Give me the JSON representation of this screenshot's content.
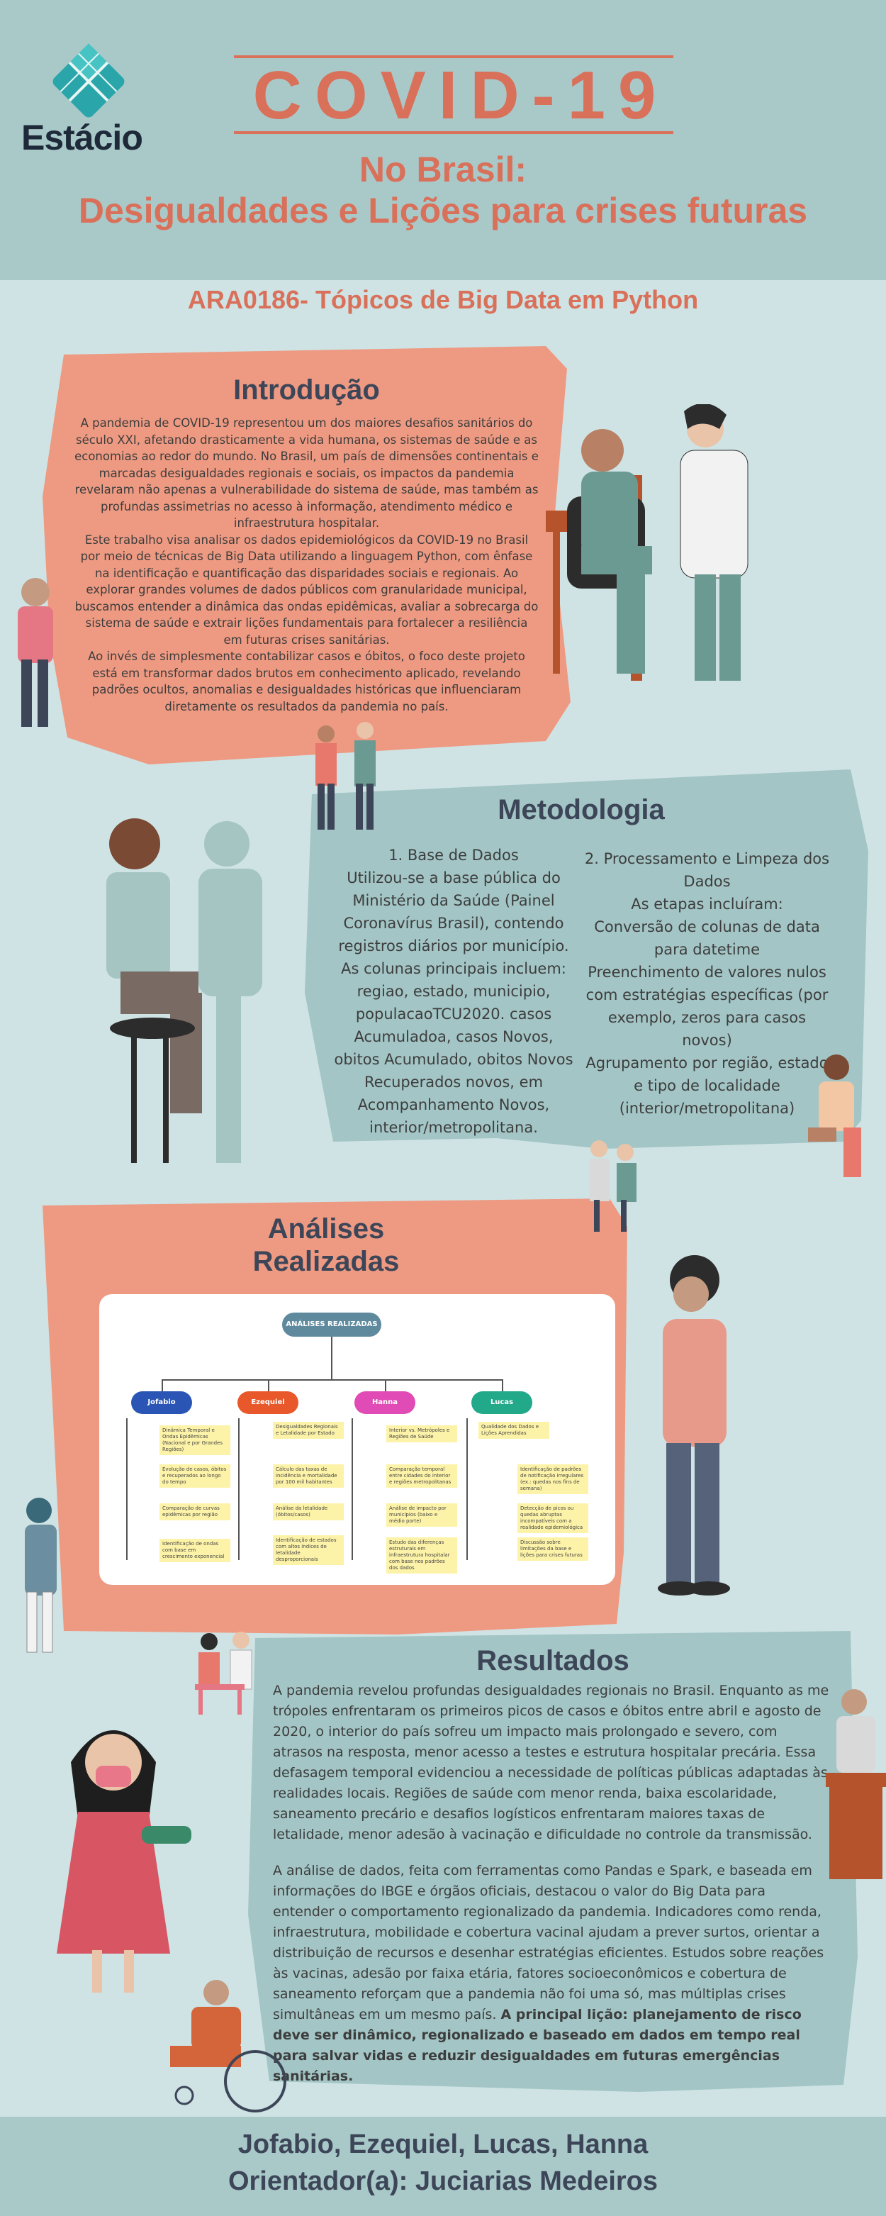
{
  "header": {
    "logo_text": "Estácio",
    "title": "COVID-19",
    "subtitle_line1": "No Brasil:",
    "subtitle_line2": "Desigualdades e Lições para crises futuras",
    "course": "ARA0186- Tópicos de Big Data em Python"
  },
  "intro": {
    "heading": "Introdução",
    "p1": "A pandemia de COVID-19 representou um dos maiores desafios sanitários do século XXI, afetando drasticamente a vida humana, os sistemas de saúde e as economias ao redor do mundo. No Brasil, um país de dimensões continentais e marcadas desigualdades regionais e sociais, os impactos da pandemia revelaram não apenas a vulnerabilidade do sistema de saúde, mas também as profundas assimetrias no acesso à informação, atendimento médico e infraestrutura hospitalar.",
    "p2": "Este trabalho visa analisar os dados epidemiológicos da COVID-19 no Brasil por meio de técnicas de Big Data utilizando a linguagem Python, com ênfase na identificação e quantificação das disparidades sociais e regionais. Ao explorar grandes volumes de dados públicos com granularidade municipal, buscamos entender a dinâmica das ondas epidêmicas, avaliar a sobrecarga do sistema de saúde e extrair lições fundamentais para fortalecer a resiliência em futuras crises sanitárias.",
    "p3": "Ao invés de simplesmente contabilizar casos e óbitos, o foco deste projeto está em transformar dados brutos em conhecimento aplicado, revelando padrões ocultos, anomalias e desigualdades históricas que influenciaram diretamente os resultados da pandemia no país."
  },
  "method": {
    "heading": "Metodologia",
    "col1": "1. Base de Dados\nUtilizou-se a base pública do Ministério da Saúde (Painel Coronavírus Brasil), contendo registros diários por município. As colunas principais incluem: regiao, estado, municipio, populacaoTCU2020. casos Acumuladoa, casos Novos, obitos Acumulado, obitos Novos Recuperados novos, em Acompanhamento Novos, interior/metropolitana.",
    "col2": "2. Processamento e Limpeza dos Dados\nAs etapas incluíram:\nConversão de colunas de data para datetime\nPreenchimento de valores nulos com estratégias específicas (por exemplo, zeros para casos novos)\nAgrupamento por região, estado e tipo de localidade (interior/metropolitana)"
  },
  "analyses": {
    "heading_line1": "Análises",
    "heading_line2": "Realizadas",
    "mindmap": {
      "root": "ANÁLISES REALIZADAS",
      "branches": [
        {
          "name": "Jofabio",
          "color": "#2a55b5",
          "notes": [
            "Dinâmica Temporal e Ondas Epidêmicas (Nacional e por Grandes Regiões)",
            "Evolução de casos, óbitos e recuperados ao longo do tempo",
            "Comparação de curvas epidêmicas por região",
            "Identificação de ondas com base em crescimento exponencial"
          ]
        },
        {
          "name": "Ezequiel",
          "color": "#e8582a",
          "notes": [
            "Desigualdades Regionais e Letalidade por Estado",
            "Cálculo das taxas de incidência e mortalidade por 100 mil habitantes",
            "Análise da letalidade (óbitos/casos)",
            "Identificação de estados com altos índices de letalidade desproporcionais"
          ]
        },
        {
          "name": "Hanna",
          "color": "#e04bb5",
          "notes": [
            "Interior vs. Metrópoles e Regiões de Saúde",
            "Comparação temporal entre cidades do interior e regiões metropolitanas",
            "Análise de impacto por municípios (baixo e médio porte)",
            "Estudo das diferenças estruturais em infraestrutura hospitalar com base nos padrões dos dados"
          ]
        },
        {
          "name": "Lucas",
          "color": "#22a98a",
          "notes": [
            "Qualidade dos Dados e Lições Aprendidas",
            "Identificação de padrões de notificação irregulares (ex.: quedas nos fins de semana)",
            "Detecção de picos ou quedas abruptas incompatíveis com a realidade epidemiológica",
            "Discussão sobre limitações da base e lições para crises futuras"
          ]
        }
      ]
    }
  },
  "results": {
    "heading": "Resultados",
    "p1": "A pandemia revelou profundas desigualdades regionais no Brasil. Enquanto as me trópoles enfrentaram os primeiros picos de casos e óbitos entre abril e agosto de 2020, o interior do país sofreu um impacto mais prolongado e severo, com atrasos na resposta, menor acesso a testes e estrutura hospitalar precária. Essa defasagem temporal evidenciou a necessidade de políticas públicas adaptadas às realidades locais. Regiões de saúde com menor renda, baixa escolaridade, saneamento precário e desafios logísticos enfrentaram maiores taxas de letalidade, menor adesão à vacinação e dificuldade no controle da transmissão.",
    "p2": " A análise de dados, feita com ferramentas como Pandas e Spark, e baseada em informações do IBGE e órgãos oficiais, destacou o valor do Big Data para entender o comportamento regionalizado da pandemia. Indicadores como renda, infraestrutura, mobilidade e cobertura vacinal ajudam a prever surtos, orientar a distribuição de recursos e desenhar estratégias eficientes. Estudos sobre reações às vacinas, adesão por faixa etária, fatores socioeconômicos e cobertura de saneamento reforçam que a pandemia não foi uma só, mas múltiplas crises simultâneas em um mesmo país. ",
    "p2_bold": "A principal lição: planejamento de risco deve ser dinâmico, regionalizado e baseado em dados em tempo real para salvar vidas e reduzir desigualdades em futuras emergências sanitárias."
  },
  "footer": {
    "names": "Jofabio, Ezequiel, Lucas, Hanna",
    "advisor": "Orientador(a): Juciarias Medeiros"
  },
  "colors": {
    "coral": "#ee9a82",
    "title": "#d9705a",
    "teal": "#a9c9c9",
    "background": "#cfe3e4",
    "heading": "#3d4658"
  }
}
